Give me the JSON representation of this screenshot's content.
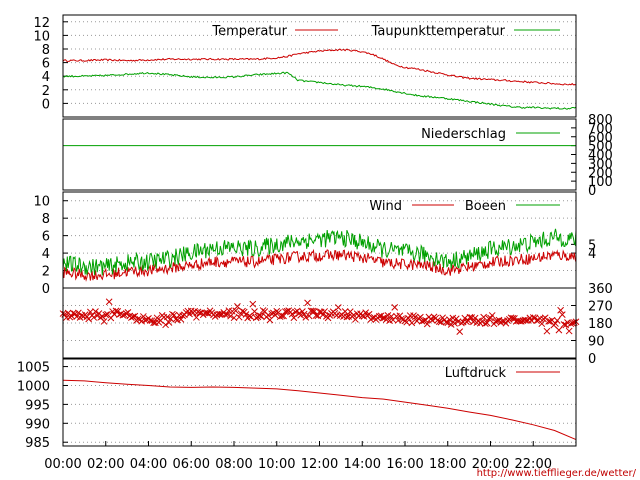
{
  "chart_data": {
    "type": "line",
    "x_labels": [
      "00:00",
      "02:00",
      "04:00",
      "06:00",
      "08:00",
      "10:00",
      "12:00",
      "14:00",
      "16:00",
      "18:00",
      "20:00",
      "22:00"
    ],
    "footer": "http://www.tiefflieger.de/wetter/",
    "colors": {
      "red": "#cc0000",
      "green": "#00a000",
      "grid": "#9a9a9a"
    },
    "panels": [
      {
        "id": "temperature",
        "ylim": [
          -2,
          13
        ],
        "y_ticks": [
          0,
          2,
          4,
          6,
          8,
          10,
          12
        ],
        "series": [
          {
            "name": "Temperatur",
            "color": "#cc0000",
            "x": [
              0,
              1,
              2,
              3,
              4,
              5,
              6,
              7,
              8,
              9,
              9.5,
              10,
              10.5,
              11,
              11.5,
              12,
              12.5,
              13,
              13.5,
              14,
              14.5,
              15,
              15.5,
              16,
              16.5,
              17,
              17.5,
              18,
              18.5,
              19,
              19.5,
              20,
              20.5,
              21,
              21.5,
              22,
              22.5,
              23,
              23.5,
              24
            ],
            "y": [
              6.3,
              6.3,
              6.4,
              6.3,
              6.4,
              6.5,
              6.5,
              6.5,
              6.5,
              6.5,
              6.6,
              6.7,
              6.9,
              7.3,
              7.5,
              7.7,
              7.8,
              7.9,
              7.8,
              7.6,
              7.2,
              6.5,
              5.7,
              5.3,
              5.1,
              4.8,
              4.5,
              4.2,
              3.9,
              3.7,
              3.6,
              3.5,
              3.4,
              3.3,
              3.2,
              3.1,
              3.0,
              2.9,
              2.8,
              2.8
            ]
          },
          {
            "name": "Taupunkttemperatur",
            "color": "#00a000",
            "x": [
              0,
              1,
              2,
              3,
              4,
              5,
              6,
              7,
              8,
              9,
              10,
              10.5,
              11,
              11.5,
              12,
              12.5,
              13,
              13.5,
              14,
              14.5,
              15,
              15.5,
              16,
              16.5,
              17,
              17.5,
              18,
              18.5,
              19,
              19.5,
              20,
              20.5,
              21,
              21.5,
              22,
              22.5,
              23,
              23.5,
              24
            ],
            "y": [
              4.0,
              4.0,
              4.1,
              4.3,
              4.5,
              4.2,
              3.9,
              3.8,
              3.9,
              4.2,
              4.4,
              4.5,
              3.4,
              3.2,
              3.1,
              2.9,
              2.7,
              2.6,
              2.5,
              2.3,
              2.1,
              1.8,
              1.5,
              1.2,
              1.0,
              0.9,
              0.7,
              0.5,
              0.3,
              0.1,
              -0.1,
              -0.3,
              -0.5,
              -0.6,
              -0.6,
              -0.7,
              -0.7,
              -0.8,
              -0.6
            ]
          }
        ]
      },
      {
        "id": "precipitation",
        "ylim": [
          0,
          800
        ],
        "y_ticks_right": [
          0,
          100,
          200,
          300,
          400,
          500,
          600,
          700,
          800
        ],
        "series": [
          {
            "name": "Niederschlag",
            "color": "#00a000",
            "x": [
              0,
              24
            ],
            "y": [
              500,
              500
            ]
          }
        ]
      },
      {
        "id": "wind",
        "ylim": [
          0,
          11
        ],
        "y_ticks": [
          0,
          2,
          4,
          6,
          8,
          10
        ],
        "y_ticks_right": [
          4,
          5
        ],
        "series": [
          {
            "name": "Wind",
            "color": "#cc0000",
            "x": [
              0,
              1,
              2,
              3,
              4,
              5,
              6,
              7,
              8,
              9,
              10,
              11,
              12,
              13,
              14,
              15,
              16,
              17,
              18,
              19,
              20,
              21,
              22,
              23,
              24
            ],
            "y": [
              1.8,
              1.5,
              1.5,
              1.9,
              2.0,
              2.3,
              2.6,
              3.0,
              3.0,
              3.0,
              3.3,
              3.6,
              3.7,
              3.8,
              3.5,
              2.9,
              2.7,
              2.6,
              2.0,
              2.4,
              2.9,
              3.2,
              3.4,
              3.8,
              3.6
            ]
          },
          {
            "name": "Boeen",
            "color": "#00a000",
            "x": [
              0,
              1,
              2,
              3,
              4,
              5,
              6,
              7,
              8,
              9,
              10,
              11,
              12,
              13,
              14,
              15,
              16,
              17,
              18,
              19,
              20,
              21,
              22,
              23,
              24
            ],
            "y": [
              2.8,
              2.5,
              2.4,
              2.9,
              3.0,
              3.4,
              4.0,
              4.6,
              4.6,
              4.5,
              5.0,
              5.4,
              5.6,
              5.8,
              5.2,
              4.4,
              4.1,
              3.8,
              3.0,
              3.6,
              4.4,
              4.8,
              5.2,
              5.8,
              5.6
            ]
          }
        ]
      },
      {
        "id": "wind-direction",
        "type": "scatter",
        "marker": "x",
        "ylim": [
          0,
          360
        ],
        "y_ticks_right": [
          0,
          90,
          180,
          270,
          360
        ],
        "series": [
          {
            "name": "",
            "color": "#cc0000",
            "x": [
              0,
              1,
              2,
              3,
              4,
              5,
              6,
              7,
              8,
              9,
              10,
              11,
              12,
              13,
              14,
              15,
              16,
              17,
              18,
              19,
              20,
              21,
              22,
              23,
              24
            ],
            "y": [
              225,
              225,
              225,
              225,
              195,
              205,
              225,
              230,
              225,
              225,
              225,
              225,
              225,
              225,
              215,
              205,
              200,
              195,
              190,
              190,
              195,
              190,
              190,
              185,
              185
            ]
          }
        ]
      },
      {
        "id": "pressure",
        "ylim": [
          984,
          1007
        ],
        "y_ticks": [
          985,
          990,
          995,
          1000,
          1005
        ],
        "series": [
          {
            "name": "Luftdruck",
            "color": "#cc0000",
            "x": [
              0,
              1,
              2,
              3,
              4,
              5,
              6,
              7,
              8,
              9,
              10,
              11,
              12,
              13,
              14,
              15,
              16,
              17,
              18,
              19,
              20,
              21,
              22,
              23,
              24
            ],
            "y": [
              1001.4,
              1001.2,
              1000.7,
              1000.3,
              1000.0,
              999.6,
              999.5,
              999.6,
              999.5,
              999.3,
              999.1,
              998.6,
              998.0,
              997.4,
              996.8,
              996.4,
              995.6,
              994.8,
              994.0,
              993.0,
              992.1,
              990.9,
              989.6,
              988.1,
              985.7
            ]
          }
        ]
      }
    ]
  }
}
